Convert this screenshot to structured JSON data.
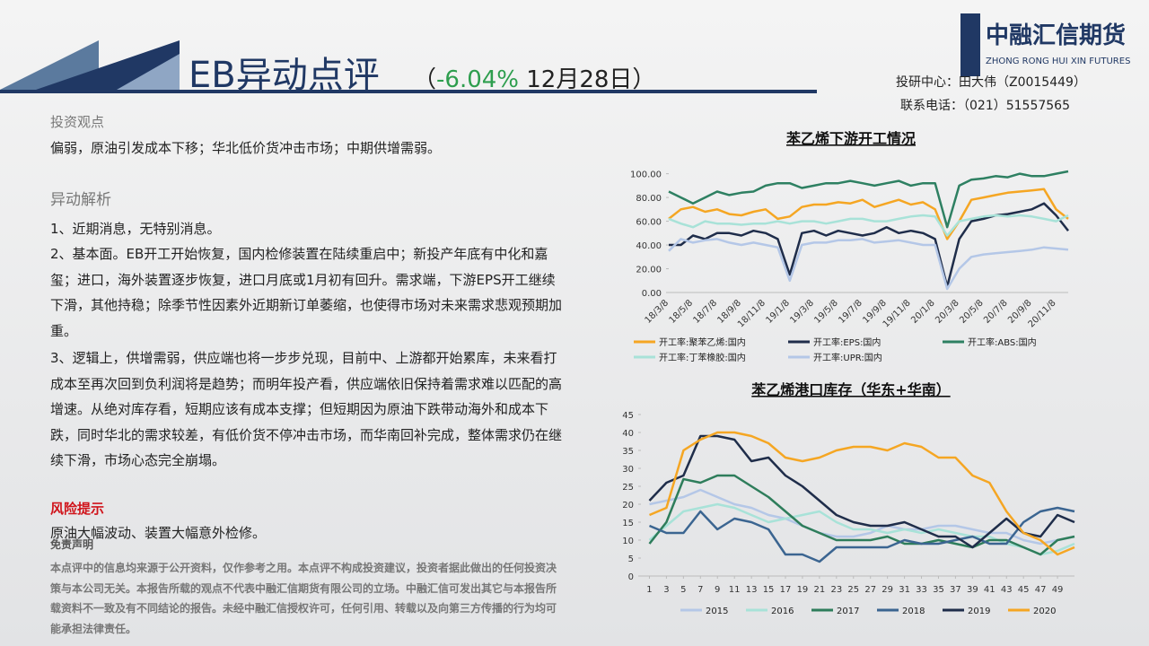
{
  "header": {
    "title": "EB异动点评",
    "paren_open": "（",
    "change": "-6.04%",
    "date": " 12月28日）",
    "logo_cn": "中融汇信期货",
    "logo_en": "ZHONG RONG HUI XIN FUTURES",
    "analyst": "投研中心：田大伟（Z0015449）",
    "phone": "联系电话：（021）51557565"
  },
  "view": {
    "heading": "投资观点",
    "text": "偏弱，原油引发成本下移；华北低价货冲击市场；中期供增需弱。"
  },
  "analysis": {
    "heading": "异动解析",
    "items": [
      "1、近期消息，无特别消息。",
      "2、基本面。EB开工开始恢复，国内检修装置在陆续重启中；新投产年底有中化和嘉玺；进口，海外装置逐步恢复，进口月底或1月初有回升。需求端，下游EPS开工继续下滑，其他持稳；除季节性因素外近期新订单萎缩，也使得市场对未来需求悲观预期加重。",
      "3、逻辑上，供增需弱，供应端也将一步步兑现，目前中、上游都开始累库，未来看打成本至再次回到负利润将是趋势；而明年投产看，供应端依旧保持着需求难以匹配的高增速。从绝对库存看，短期应该有成本支撑；但短期因为原油下跌带动海外和成本下跌，同时华北的需求较差，有低价货不停冲击市场，而华南回补完成，整体需求仍在继续下滑，市场心态完全崩塌。"
    ]
  },
  "risk": {
    "heading": "风险提示",
    "text": "原油大幅波动、装置大幅意外检修。"
  },
  "disclaimer": {
    "heading": "免责声明",
    "text": "本点评中的信息均来源于公开资料，仅作参考之用。本点评不构成投资建议，投资者据此做出的任何投资决策与本公司无关。本报告所载的观点不代表中融汇信期货有限公司的立场。中融汇信可发出其它与本报告所载资料不一致及有不同结论的报告。未经中融汇信授权许可，任何引用、转载以及向第三方传播的行为均可能承担法律责任。"
  },
  "chart_data": [
    {
      "type": "line",
      "title": "苯乙烯下游开工情况",
      "categories": [
        "18/3/8",
        null,
        "18/5/8",
        null,
        "18/7/8",
        null,
        "18/9/8",
        null,
        "18/11/8",
        null,
        "19/1/8",
        null,
        "19/3/8",
        null,
        "19/5/8",
        null,
        "19/7/8",
        null,
        "19/9/8",
        null,
        "19/11/8",
        null,
        "20/1/8",
        null,
        "20/3/8",
        null,
        "20/5/8",
        null,
        "20/7/8",
        null,
        "20/9/8",
        null,
        "20/11/8",
        null
      ],
      "ylim": [
        0,
        105
      ],
      "yticks": [
        {
          "value": 0,
          "label": "0.00"
        },
        {
          "value": 20,
          "label": "20.00"
        },
        {
          "value": 40,
          "label": "40.00"
        },
        {
          "value": 60,
          "label": "60.00"
        },
        {
          "value": 80,
          "label": "80.00"
        },
        {
          "value": 100,
          "label": "100.00"
        }
      ],
      "series": [
        {
          "name": "开工率:聚苯乙烯:国内",
          "color": "#f5a623",
          "values": [
            62,
            70,
            72,
            68,
            70,
            66,
            65,
            68,
            70,
            62,
            64,
            72,
            74,
            74,
            76,
            75,
            78,
            72,
            75,
            78,
            74,
            76,
            70,
            45,
            60,
            78,
            80,
            82,
            84,
            85,
            86,
            87,
            70,
            62
          ]
        },
        {
          "name": "开工率:EPS:国内",
          "color": "#1f2d4a",
          "values": [
            40,
            40,
            48,
            45,
            50,
            50,
            48,
            52,
            50,
            45,
            15,
            50,
            52,
            48,
            52,
            50,
            48,
            50,
            55,
            50,
            52,
            50,
            45,
            5,
            45,
            60,
            62,
            65,
            66,
            68,
            70,
            75,
            65,
            52
          ]
        },
        {
          "name": "开工率:ABS:国内",
          "color": "#2e8062",
          "values": [
            85,
            80,
            75,
            80,
            85,
            82,
            84,
            85,
            90,
            92,
            92,
            88,
            90,
            92,
            92,
            94,
            92,
            90,
            92,
            94,
            90,
            92,
            92,
            55,
            90,
            95,
            96,
            98,
            97,
            100,
            98,
            98,
            100,
            102
          ]
        },
        {
          "name": "开工率:丁苯橡胶:国内",
          "color": "#a8e2d8",
          "values": [
            62,
            58,
            55,
            60,
            58,
            58,
            57,
            58,
            58,
            60,
            58,
            60,
            60,
            58,
            60,
            62,
            62,
            60,
            60,
            62,
            64,
            65,
            64,
            48,
            60,
            62,
            64,
            65,
            64,
            65,
            64,
            62,
            60,
            65
          ]
        },
        {
          "name": "开工率:UPR:国内",
          "color": "#b4c7e7",
          "values": [
            35,
            45,
            42,
            44,
            45,
            42,
            40,
            42,
            40,
            38,
            10,
            40,
            42,
            42,
            44,
            44,
            45,
            42,
            43,
            44,
            42,
            40,
            40,
            3,
            20,
            30,
            32,
            33,
            34,
            35,
            36,
            38,
            37,
            36
          ]
        }
      ]
    },
    {
      "type": "line",
      "title": "苯乙烯港口库存（华东+华南）",
      "x": [
        1,
        3,
        5,
        7,
        9,
        11,
        13,
        15,
        17,
        19,
        21,
        23,
        25,
        27,
        29,
        31,
        33,
        35,
        37,
        39,
        41,
        43,
        45,
        47,
        49,
        51
      ],
      "xlim": [
        0,
        51
      ],
      "xticks": [
        1,
        3,
        5,
        7,
        9,
        11,
        13,
        15,
        17,
        19,
        21,
        23,
        25,
        27,
        29,
        31,
        33,
        35,
        37,
        39,
        41,
        43,
        45,
        47,
        49
      ],
      "ylim": [
        0,
        45
      ],
      "yticks": [
        0,
        5,
        10,
        15,
        20,
        25,
        30,
        35,
        40,
        45
      ],
      "series": [
        {
          "name": "2015",
          "color": "#b4c7e7",
          "values": [
            20,
            21,
            22,
            24,
            22,
            20,
            19,
            17,
            16,
            14,
            12,
            11,
            11,
            12,
            14,
            13,
            13,
            14,
            14,
            13,
            12,
            12,
            10,
            9,
            10,
            11
          ]
        },
        {
          "name": "2016",
          "color": "#a8e2d8",
          "values": [
            10,
            14,
            18,
            19,
            20,
            19,
            17,
            15,
            16,
            17,
            18,
            15,
            13,
            13,
            12,
            13,
            12,
            13,
            12,
            11,
            11,
            9,
            8,
            6,
            7,
            9
          ]
        },
        {
          "name": "2017",
          "color": "#2e7d5b",
          "values": [
            9,
            15,
            27,
            26,
            28,
            28,
            25,
            22,
            18,
            14,
            12,
            10,
            10,
            10,
            11,
            9,
            9,
            10,
            9,
            8,
            10,
            10,
            8,
            6,
            10,
            11
          ]
        },
        {
          "name": "2018",
          "color": "#3b6591",
          "values": [
            14,
            12,
            12,
            18,
            13,
            16,
            15,
            13,
            6,
            6,
            4,
            8,
            8,
            8,
            8,
            10,
            9,
            9,
            10,
            11,
            9,
            9,
            15,
            18,
            19,
            18
          ]
        },
        {
          "name": "2019",
          "color": "#1f2d4a",
          "values": [
            21,
            26,
            28,
            39,
            39,
            38,
            32,
            33,
            28,
            25,
            21,
            17,
            15,
            14,
            14,
            15,
            13,
            11,
            11,
            8,
            12,
            16,
            12,
            11,
            17,
            15
          ]
        },
        {
          "name": "2020",
          "color": "#f5a623",
          "values": [
            17,
            19,
            35,
            38,
            40,
            40,
            39,
            37,
            33,
            32,
            33,
            35,
            36,
            36,
            35,
            37,
            36,
            33,
            33,
            28,
            26,
            18,
            12,
            10,
            6,
            8
          ]
        }
      ]
    }
  ]
}
